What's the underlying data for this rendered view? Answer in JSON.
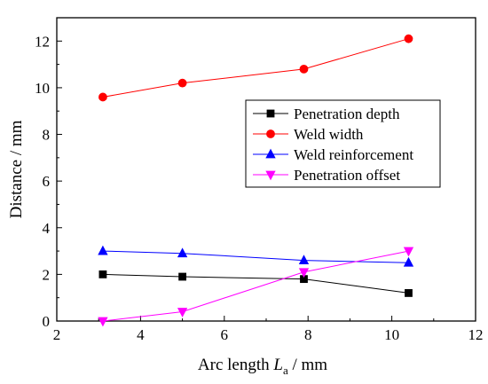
{
  "chart_data": {
    "type": "line",
    "xlabel_main": "Arc length",
    "xlabel_symbol": "L",
    "xlabel_subscript": "a",
    "xlabel_unit": " / mm",
    "ylabel": "Distance / mm",
    "xlim": [
      2,
      12
    ],
    "ylim": [
      0,
      13
    ],
    "xticks": [
      2,
      4,
      6,
      8,
      10,
      12
    ],
    "yticks": [
      0,
      2,
      4,
      6,
      8,
      10,
      12
    ],
    "grid": false,
    "legend_position": "right",
    "series": [
      {
        "name": "Penetration depth",
        "color": "#000000",
        "marker": "square",
        "x": [
          3.1,
          5.0,
          7.9,
          10.4
        ],
        "y": [
          2.0,
          1.9,
          1.8,
          1.2
        ]
      },
      {
        "name": "Weld width",
        "color": "#ff0000",
        "marker": "circle",
        "x": [
          3.1,
          5.0,
          7.9,
          10.4
        ],
        "y": [
          9.6,
          10.2,
          10.8,
          12.1
        ]
      },
      {
        "name": "Weld reinforcement",
        "color": "#0000ff",
        "marker": "triangle-up",
        "x": [
          3.1,
          5.0,
          7.9,
          10.4
        ],
        "y": [
          3.0,
          2.9,
          2.6,
          2.5
        ]
      },
      {
        "name": "Penetration offset",
        "color": "#ff00ff",
        "marker": "triangle-down",
        "x": [
          3.1,
          5.0,
          7.9,
          10.4
        ],
        "y": [
          0.0,
          0.4,
          2.1,
          3.0
        ]
      }
    ]
  }
}
